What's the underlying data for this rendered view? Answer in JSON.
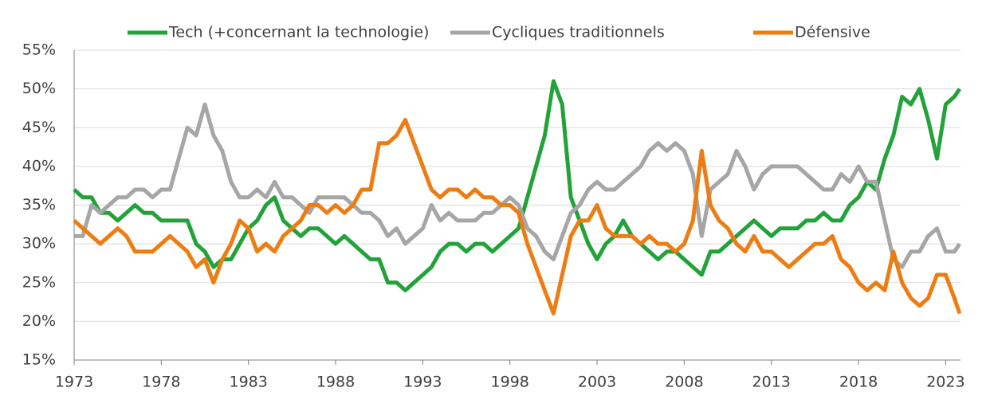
{
  "chart_data": {
    "type": "line",
    "x": [
      1973,
      1973.5,
      1974,
      1974.5,
      1975,
      1975.5,
      1976,
      1976.5,
      1977,
      1977.5,
      1978,
      1978.5,
      1979,
      1979.5,
      1980,
      1980.5,
      1981,
      1981.5,
      1982,
      1982.5,
      1983,
      1983.5,
      1984,
      1984.5,
      1985,
      1985.5,
      1986,
      1986.5,
      1987,
      1987.5,
      1988,
      1988.5,
      1989,
      1989.5,
      1990,
      1990.5,
      1991,
      1991.5,
      1992,
      1992.5,
      1993,
      1993.5,
      1994,
      1994.5,
      1995,
      1995.5,
      1996,
      1996.5,
      1997,
      1997.5,
      1998,
      1998.5,
      1999,
      1999.5,
      2000,
      2000.5,
      2001,
      2001.5,
      2002,
      2002.5,
      2003,
      2003.5,
      2004,
      2004.5,
      2005,
      2005.5,
      2006,
      2006.5,
      2007,
      2007.5,
      2008,
      2008.5,
      2009,
      2009.5,
      2010,
      2010.5,
      2011,
      2011.5,
      2012,
      2012.5,
      2013,
      2013.5,
      2014,
      2014.5,
      2015,
      2015.5,
      2016,
      2016.5,
      2017,
      2017.5,
      2018,
      2018.5,
      2019,
      2019.5,
      2020,
      2020.5,
      2021,
      2021.5,
      2022,
      2022.5,
      2023,
      2023.5,
      2023.8
    ],
    "series": [
      {
        "name": "Tech (+concernant la technologie)",
        "color": "#22a33a",
        "values": [
          37,
          36,
          36,
          34,
          34,
          33,
          34,
          35,
          34,
          34,
          33,
          33,
          33,
          33,
          30,
          29,
          27,
          28,
          28,
          30,
          32,
          33,
          35,
          36,
          33,
          32,
          31,
          32,
          32,
          31,
          30,
          31,
          30,
          29,
          28,
          28,
          25,
          25,
          24,
          25,
          26,
          27,
          29,
          30,
          30,
          29,
          30,
          30,
          29,
          30,
          31,
          32,
          36,
          40,
          44,
          51,
          48,
          36,
          33,
          30,
          28,
          30,
          31,
          33,
          31,
          30,
          29,
          28,
          29,
          29,
          28,
          27,
          26,
          29,
          29,
          30,
          31,
          32,
          33,
          32,
          31,
          32,
          32,
          32,
          33,
          33,
          34,
          33,
          33,
          35,
          36,
          38,
          37,
          41,
          44,
          49,
          48,
          50,
          46,
          41,
          48,
          49,
          50
        ]
      },
      {
        "name": "Cycliques traditionnels",
        "color": "#a6a6a6",
        "values": [
          31,
          31,
          35,
          34,
          35,
          36,
          36,
          37,
          37,
          36,
          37,
          37,
          41,
          45,
          44,
          48,
          44,
          42,
          38,
          36,
          36,
          37,
          36,
          38,
          36,
          36,
          35,
          34,
          36,
          36,
          36,
          36,
          35,
          34,
          34,
          33,
          31,
          32,
          30,
          31,
          32,
          35,
          33,
          34,
          33,
          33,
          33,
          34,
          34,
          35,
          36,
          35,
          32,
          31,
          29,
          28,
          31,
          34,
          35,
          37,
          38,
          37,
          37,
          38,
          39,
          40,
          42,
          43,
          42,
          43,
          42,
          39,
          31,
          37,
          38,
          39,
          42,
          40,
          37,
          39,
          40,
          40,
          40,
          40,
          39,
          38,
          37,
          37,
          39,
          38,
          40,
          38,
          38,
          33,
          28,
          27,
          29,
          29,
          31,
          32,
          29,
          29,
          30
        ]
      },
      {
        "name": "Défensive",
        "color": "#ed7d12",
        "values": [
          33,
          32,
          31,
          30,
          31,
          32,
          31,
          29,
          29,
          29,
          30,
          31,
          30,
          29,
          27,
          28,
          25,
          28,
          30,
          33,
          32,
          29,
          30,
          29,
          31,
          32,
          33,
          35,
          35,
          34,
          35,
          34,
          35,
          37,
          37,
          43,
          43,
          44,
          46,
          43,
          40,
          37,
          36,
          37,
          37,
          36,
          37,
          36,
          36,
          35,
          35,
          34,
          30,
          27,
          24,
          21,
          26,
          31,
          33,
          33,
          35,
          32,
          31,
          31,
          31,
          30,
          31,
          30,
          30,
          29,
          30,
          33,
          42,
          35,
          33,
          32,
          30,
          29,
          31,
          29,
          29,
          28,
          27,
          28,
          29,
          30,
          30,
          31,
          28,
          27,
          25,
          24,
          25,
          24,
          29,
          25,
          23,
          22,
          23,
          26,
          26,
          23,
          21
        ]
      }
    ],
    "xlim": [
      1973,
      2023.85
    ],
    "xticks": [
      1973,
      1978,
      1983,
      1988,
      1993,
      1998,
      2003,
      2008,
      2013,
      2018,
      2023
    ],
    "ylim": [
      15,
      55
    ],
    "yticks": [
      {
        "value": 15,
        "label": "15%"
      },
      {
        "value": 20,
        "label": "20%"
      },
      {
        "value": 25,
        "label": "25%"
      },
      {
        "value": 30,
        "label": "30%"
      },
      {
        "value": 35,
        "label": "35%"
      },
      {
        "value": 40,
        "label": "40%"
      },
      {
        "value": 45,
        "label": "45%"
      },
      {
        "value": 50,
        "label": "50%"
      },
      {
        "value": 55,
        "label": "55%"
      }
    ],
    "grid": true
  }
}
